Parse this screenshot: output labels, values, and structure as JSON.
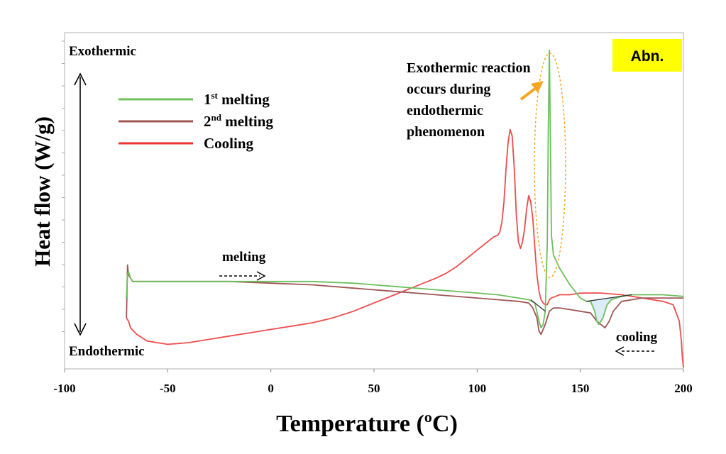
{
  "chart_data": {
    "type": "line",
    "xlabel": "Temperature (ºC)",
    "ylabel": "Heat flow (W/g)",
    "xlim": [
      -100,
      200
    ],
    "ylim": [
      0,
      100
    ],
    "x_ticks": [
      -100,
      -50,
      0,
      50,
      100,
      150,
      200
    ],
    "grid": false,
    "badge": "Abn.",
    "badge_color": "#ffff00",
    "y_direction_labels": {
      "top": "Exothermic",
      "bottom": "Endothermic"
    },
    "legend": {
      "placement": "top-left",
      "entries": [
        {
          "label": "1",
          "sup": "st",
          "rest": " melting",
          "color": "#70c05a"
        },
        {
          "label": "2",
          "sup": "nd",
          "rest": " melting",
          "color": "#a05555"
        },
        {
          "label": "Cooling",
          "sup": "",
          "rest": "",
          "color": "#ee3333"
        }
      ]
    },
    "annotations": {
      "reaction_lines": [
        "Exothermic reaction",
        "occurs during",
        "endothermic",
        "phenomenon"
      ],
      "reaction_arrow_color": "#f5a623",
      "ellipse_color": "#f5a623",
      "melting_label": "melting",
      "cooling_label": "cooling"
    },
    "series": [
      {
        "name": "1st melting",
        "color": "#6cbf5c",
        "x": [
          -70,
          -69.5,
          -69,
          -68,
          -67,
          -60,
          -40,
          -20,
          0,
          20,
          40,
          60,
          80,
          100,
          110,
          120,
          125,
          128,
          130,
          131,
          132,
          133,
          134,
          134.5,
          135,
          135.5,
          136,
          137,
          140,
          145,
          150,
          153,
          155,
          157,
          158,
          159,
          161,
          163,
          165,
          170,
          175,
          180,
          190,
          200
        ],
        "y": [
          21,
          28,
          29,
          27,
          26,
          26,
          26,
          26,
          26,
          26,
          25.5,
          24.5,
          23.5,
          22.5,
          22,
          21,
          20.5,
          19.5,
          14,
          12,
          13,
          17,
          38,
          72,
          96,
          70,
          40,
          34,
          30,
          25,
          21,
          20,
          20,
          17,
          14,
          13,
          15,
          19,
          20.5,
          21.5,
          22,
          22,
          22,
          21.5
        ]
      },
      {
        "name": "2nd melting",
        "color": "#a05555",
        "x": [
          -70,
          -69.5,
          -69,
          -67,
          -60,
          -40,
          -20,
          0,
          20,
          40,
          60,
          80,
          100,
          110,
          120,
          125,
          127,
          129,
          130,
          131,
          133,
          135,
          137,
          140,
          145,
          150,
          155,
          158,
          160,
          162,
          164,
          166,
          170,
          175,
          180,
          190,
          200
        ],
        "y": [
          15,
          31,
          28,
          26,
          26,
          26,
          26,
          25.5,
          25,
          24,
          23,
          22,
          21,
          20.5,
          20,
          19.5,
          18,
          15,
          11,
          10,
          13,
          17,
          18,
          18,
          17.5,
          17,
          16.5,
          14,
          13,
          12,
          14,
          17,
          20,
          20.5,
          21,
          21,
          21
        ]
      },
      {
        "name": "Cooling",
        "color": "#ef4c4c",
        "x": [
          200,
          199.5,
          199,
          198,
          195,
          190,
          180,
          170,
          160,
          150,
          145,
          140,
          138,
          136,
          135,
          134,
          133,
          132,
          131,
          130,
          129,
          128,
          127,
          126,
          125,
          124,
          123,
          122,
          121,
          120,
          119,
          118,
          117,
          116,
          115,
          114,
          113,
          112,
          111,
          110,
          108,
          105,
          100,
          95,
          90,
          85,
          80,
          70,
          60,
          50,
          40,
          30,
          20,
          10,
          0,
          -10,
          -20,
          -30,
          -40,
          -50,
          -55,
          -60,
          -65,
          -68,
          -69,
          -70
        ],
        "y": [
          0,
          3,
          8,
          14,
          19,
          20,
          21,
          22,
          22.5,
          22.5,
          22,
          22,
          21.5,
          21,
          20.5,
          19,
          19,
          19.5,
          20.5,
          23,
          28,
          36,
          45,
          50,
          52,
          48,
          42,
          38,
          36,
          38,
          46,
          60,
          70,
          72,
          68,
          60,
          50,
          44,
          41,
          40,
          39.5,
          38,
          35.5,
          33,
          30.5,
          28.5,
          27,
          24.5,
          22,
          19.5,
          17,
          15,
          13.5,
          12.5,
          11.5,
          10.5,
          9.5,
          8.5,
          7.5,
          7,
          7.5,
          8,
          10,
          12,
          14,
          15
        ]
      }
    ]
  }
}
